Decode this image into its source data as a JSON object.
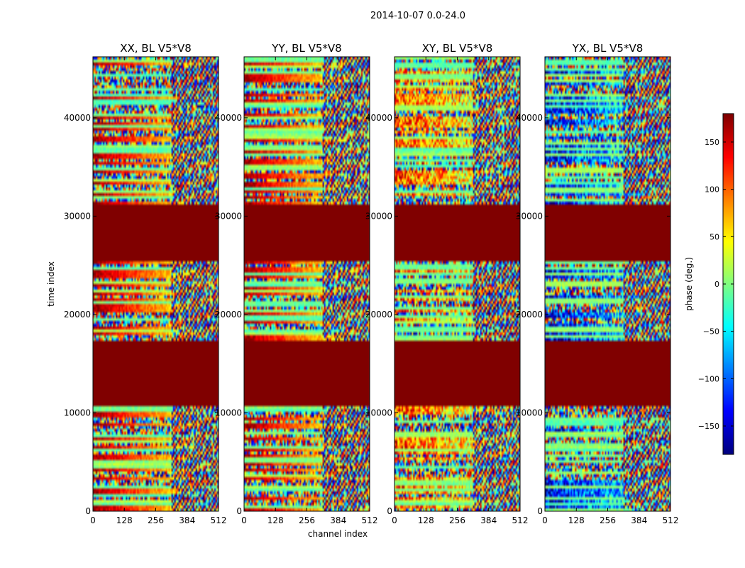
{
  "figure": {
    "title": "2014-10-07 0.0-24.0"
  },
  "chart_data": {
    "type": "heatmap",
    "subtitle": "2014-10-07 0.0-24.0",
    "xlabel": "channel index",
    "ylabel": "time index",
    "xlim": [
      0,
      512
    ],
    "ylim": [
      0,
      46200
    ],
    "x_ticks": [
      0,
      128,
      256,
      384,
      512
    ],
    "y_ticks": [
      0,
      10000,
      20000,
      30000,
      40000
    ],
    "colormap": "jet",
    "colorbar": {
      "label": "phase (deg.)",
      "range": [
        -180,
        180
      ],
      "ticks": [
        150,
        100,
        50,
        0,
        -50,
        -100,
        -150
      ],
      "ticks_text": [
        "150",
        "100",
        "50",
        "0",
        "−50",
        "−100",
        "−150"
      ]
    },
    "flagged_time_ranges": [
      [
        10600,
        17400
      ],
      [
        25400,
        31200
      ]
    ],
    "flagged_value": 180,
    "panels": [
      {
        "title": "XX, BL V5*V8",
        "phase_trend": "strong"
      },
      {
        "title": "YY, BL V5*V8",
        "phase_trend": "strong"
      },
      {
        "title": "XY, BL V5*V8",
        "phase_trend": "noisy"
      },
      {
        "title": "YX, BL V5*V8",
        "phase_trend": "noisy-negative"
      }
    ]
  }
}
